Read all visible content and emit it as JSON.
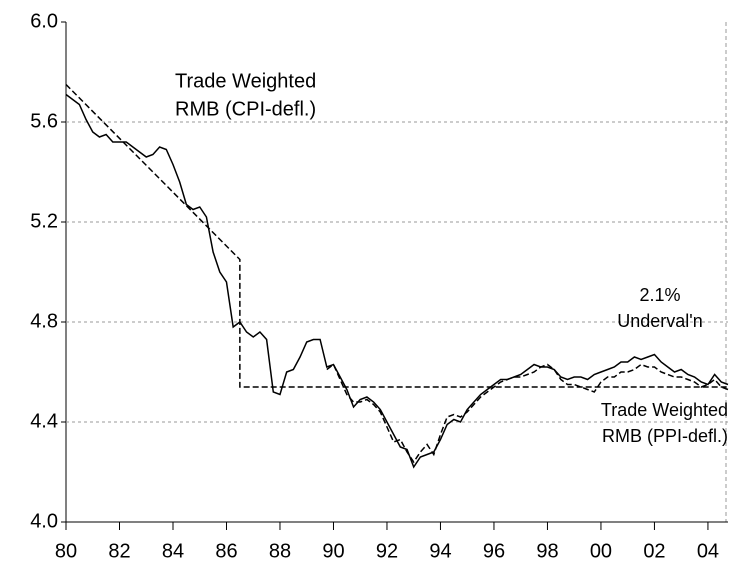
{
  "chart_data": {
    "type": "line",
    "x": [
      1980,
      1980.25,
      1980.5,
      1980.75,
      1981,
      1981.25,
      1981.5,
      1981.75,
      1982,
      1982.25,
      1982.5,
      1982.75,
      1983,
      1983.25,
      1983.5,
      1983.75,
      1984,
      1984.25,
      1984.5,
      1984.75,
      1985,
      1985.25,
      1985.5,
      1985.75,
      1986,
      1986.25,
      1986.5,
      1986.75,
      1987,
      1987.25,
      1987.5,
      1987.75,
      1988,
      1988.25,
      1988.5,
      1988.75,
      1989,
      1989.25,
      1989.5,
      1989.75,
      1990,
      1990.25,
      1990.5,
      1990.75,
      1991,
      1991.25,
      1991.5,
      1991.75,
      1992,
      1992.25,
      1992.5,
      1992.75,
      1993,
      1993.25,
      1993.5,
      1993.75,
      1994,
      1994.25,
      1994.5,
      1994.75,
      1995,
      1995.25,
      1995.5,
      1995.75,
      1996,
      1996.25,
      1996.5,
      1996.75,
      1997,
      1997.25,
      1997.5,
      1997.75,
      1998,
      1998.25,
      1998.5,
      1998.75,
      1999,
      1999.25,
      1999.5,
      1999.75,
      2000,
      2000.25,
      2000.5,
      2000.75,
      2001,
      2001.25,
      2001.5,
      2001.75,
      2002,
      2002.25,
      2002.5,
      2002.75,
      2003,
      2003.25,
      2003.5,
      2003.75,
      2004,
      2004.25,
      2004.5,
      2004.75
    ],
    "series": [
      {
        "color": "#000000",
        "dash": false,
        "values": [
          5.71,
          5.69,
          5.67,
          5.61,
          5.56,
          5.54,
          5.55,
          5.52,
          5.52,
          5.52,
          5.5,
          5.48,
          5.46,
          5.47,
          5.5,
          5.49,
          5.43,
          5.36,
          5.27,
          5.25,
          5.26,
          5.22,
          5.08,
          5.0,
          4.96,
          4.78,
          4.8,
          4.76,
          4.74,
          4.76,
          4.73,
          4.52,
          4.51,
          4.6,
          4.61,
          4.66,
          4.72,
          4.73,
          4.73,
          4.62,
          4.63,
          4.58,
          4.53,
          4.46,
          4.49,
          4.5,
          4.48,
          4.45,
          4.4,
          4.35,
          4.3,
          4.29,
          4.22,
          4.26,
          4.27,
          4.28,
          4.33,
          4.39,
          4.41,
          4.4,
          4.45,
          4.48,
          4.51,
          4.53,
          4.55,
          4.57,
          4.57,
          4.58,
          4.59,
          4.61,
          4.63,
          4.62,
          4.62,
          4.61,
          4.58,
          4.57,
          4.58,
          4.58,
          4.57,
          4.59,
          4.6,
          4.61,
          4.62,
          4.64,
          4.64,
          4.66,
          4.65,
          4.66,
          4.67,
          4.64,
          4.62,
          4.6,
          4.61,
          4.59,
          4.58,
          4.56,
          4.55,
          4.59,
          4.56,
          4.55
        ]
      },
      {
        "color": "#000000",
        "dash": true,
        "values": [
          null,
          null,
          null,
          null,
          null,
          null,
          null,
          null,
          null,
          null,
          null,
          null,
          null,
          null,
          null,
          null,
          null,
          null,
          null,
          null,
          null,
          null,
          null,
          null,
          null,
          null,
          null,
          null,
          null,
          null,
          null,
          null,
          null,
          null,
          null,
          null,
          null,
          null,
          null,
          4.61,
          4.63,
          4.57,
          4.51,
          4.48,
          4.48,
          4.49,
          4.47,
          4.44,
          4.38,
          4.32,
          4.33,
          4.28,
          4.24,
          4.28,
          4.31,
          4.27,
          4.35,
          4.42,
          4.43,
          4.42,
          4.44,
          4.47,
          4.5,
          4.52,
          4.54,
          4.56,
          4.57,
          4.58,
          4.58,
          4.59,
          4.6,
          4.62,
          4.63,
          4.61,
          4.57,
          4.55,
          4.55,
          4.54,
          4.53,
          4.52,
          4.56,
          4.58,
          4.58,
          4.6,
          4.6,
          4.61,
          4.63,
          4.62,
          4.62,
          4.6,
          4.59,
          4.58,
          4.58,
          4.57,
          4.56,
          4.54,
          4.55,
          4.57,
          4.54,
          4.53
        ]
      },
      {
        "color": "#000000",
        "dash": true,
        "x": [
          1980,
          1986.5,
          1986.5,
          2004.75
        ],
        "values": [
          5.75,
          5.05,
          4.54,
          4.54
        ]
      }
    ],
    "xlim": [
      1980,
      2004.75
    ],
    "xticks": [
      {
        "value": 1980,
        "label": "80"
      },
      {
        "value": 1982,
        "label": "82"
      },
      {
        "value": 1984,
        "label": "84"
      },
      {
        "value": 1986,
        "label": "86"
      },
      {
        "value": 1988,
        "label": "88"
      },
      {
        "value": 1990,
        "label": "90"
      },
      {
        "value": 1992,
        "label": "92"
      },
      {
        "value": 1994,
        "label": "94"
      },
      {
        "value": 1996,
        "label": "96"
      },
      {
        "value": 1998,
        "label": "98"
      },
      {
        "value": 2000,
        "label": "00"
      },
      {
        "value": 2002,
        "label": "02"
      },
      {
        "value": 2004,
        "label": "04"
      }
    ],
    "ylim": [
      4.0,
      6.0
    ],
    "yticks": [
      {
        "value": 4.0,
        "label": "4.0"
      },
      4.4,
      4.8,
      5.2,
      5.6,
      {
        "value": 6.0,
        "label": "6.0"
      }
    ],
    "grid": true,
    "annotations": [
      {
        "lines": [
          "Trade Weighted",
          "RMB (CPI-defl.)"
        ]
      },
      {
        "lines": [
          "2.1%",
          "Underval'n"
        ]
      },
      {
        "lines": [
          "Trade Weighted",
          "RMB (PPI-defl.)"
        ]
      }
    ]
  }
}
